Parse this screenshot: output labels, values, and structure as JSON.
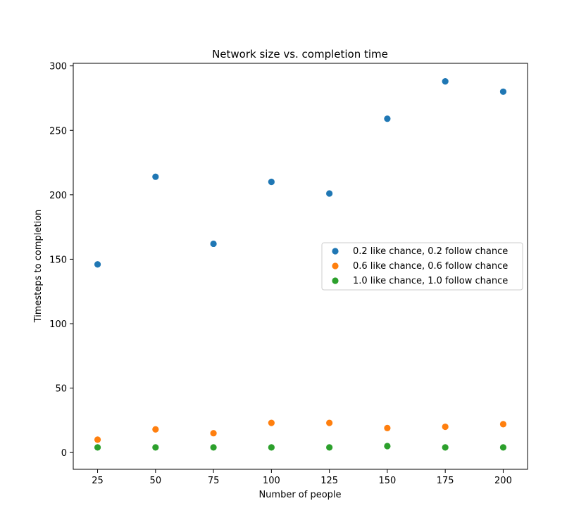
{
  "chart_data": {
    "type": "scatter",
    "title": "Network size vs. completion time",
    "xlabel": "Number of people",
    "ylabel": "Timesteps to completion",
    "x": [
      25,
      50,
      75,
      100,
      125,
      150,
      175,
      200
    ],
    "xticks": [
      25,
      50,
      75,
      100,
      125,
      150,
      175,
      200
    ],
    "yticks": [
      0,
      50,
      100,
      150,
      200,
      250,
      300
    ],
    "xlim": [
      14.5,
      210.5
    ],
    "ylim": [
      -13,
      302
    ],
    "grid": false,
    "legend_position": "center-right",
    "series": [
      {
        "name": "0.2 like chance, 0.2 follow chance",
        "color": "#1f77b4",
        "values": [
          146,
          214,
          162,
          210,
          201,
          259,
          288,
          280
        ]
      },
      {
        "name": "0.6 like chance, 0.6 follow chance",
        "color": "#ff7f0e",
        "values": [
          10,
          18,
          15,
          23,
          23,
          19,
          20,
          22
        ]
      },
      {
        "name": "1.0 like chance, 1.0 follow chance",
        "color": "#2ca02c",
        "values": [
          4,
          4,
          4,
          4,
          4,
          5,
          4,
          4
        ]
      }
    ]
  }
}
